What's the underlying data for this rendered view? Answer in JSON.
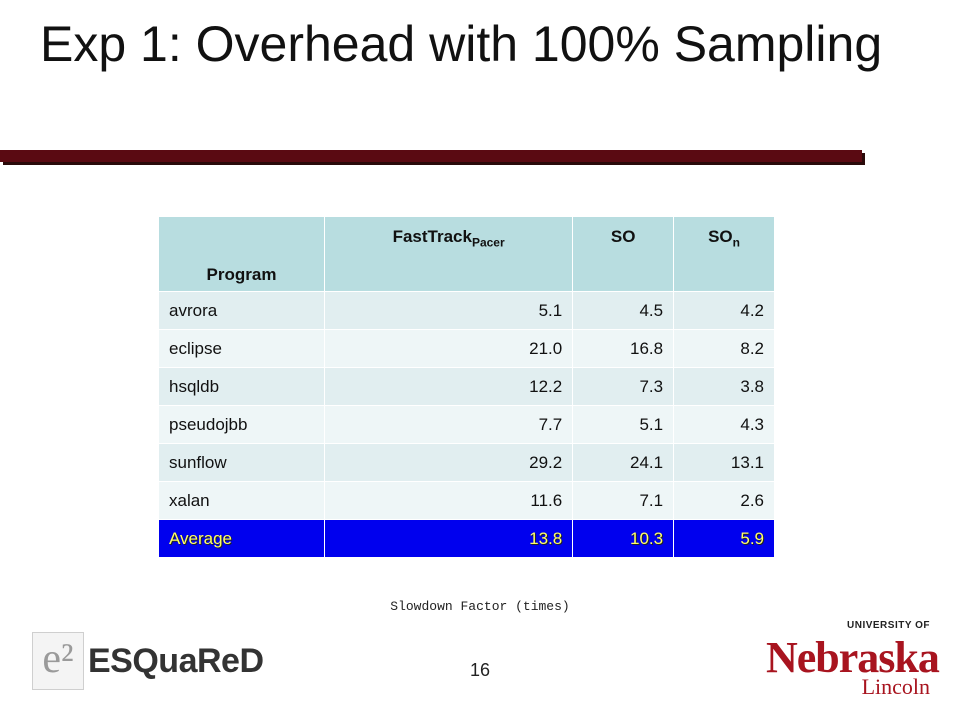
{
  "slide": {
    "title": "Exp 1: Overhead with 100% Sampling",
    "caption": "Slowdown Factor (times)",
    "page_number": "16"
  },
  "table": {
    "headers": {
      "program": "Program",
      "fasttrack": "FastTrack",
      "fasttrack_sub": "Pacer",
      "so": "SO",
      "son": "SO",
      "son_sub": "n"
    },
    "rows": [
      {
        "name": "avrora",
        "fasttrack": "5.1",
        "so": "4.5",
        "son": "4.2"
      },
      {
        "name": "eclipse",
        "fasttrack": "21.0",
        "so": "16.8",
        "son": "8.2"
      },
      {
        "name": "hsqldb",
        "fasttrack": "12.2",
        "so": "7.3",
        "son": "3.8"
      },
      {
        "name": "pseudojbb",
        "fasttrack": "7.7",
        "so": "5.1",
        "son": "4.3"
      },
      {
        "name": "sunflow",
        "fasttrack": "29.2",
        "so": "24.1",
        "son": "13.1"
      },
      {
        "name": "xalan",
        "fasttrack": "11.6",
        "so": "7.1",
        "son": "2.6"
      }
    ],
    "average": {
      "name": "Average",
      "fasttrack": "13.8",
      "so": "10.3",
      "son": "5.9"
    }
  },
  "logos": {
    "left_mark": "e²",
    "left_text": "ESQuaReD",
    "right_top": "UNIVERSITY OF",
    "right_main": "Nebraska",
    "right_sub": "Lincoln"
  },
  "colors": {
    "title_rule": "#5a0a12",
    "header_bg": "#b8dde0",
    "average_bg": "#0000ee",
    "average_text": "#ffff66",
    "unl_red": "#a8141f"
  }
}
